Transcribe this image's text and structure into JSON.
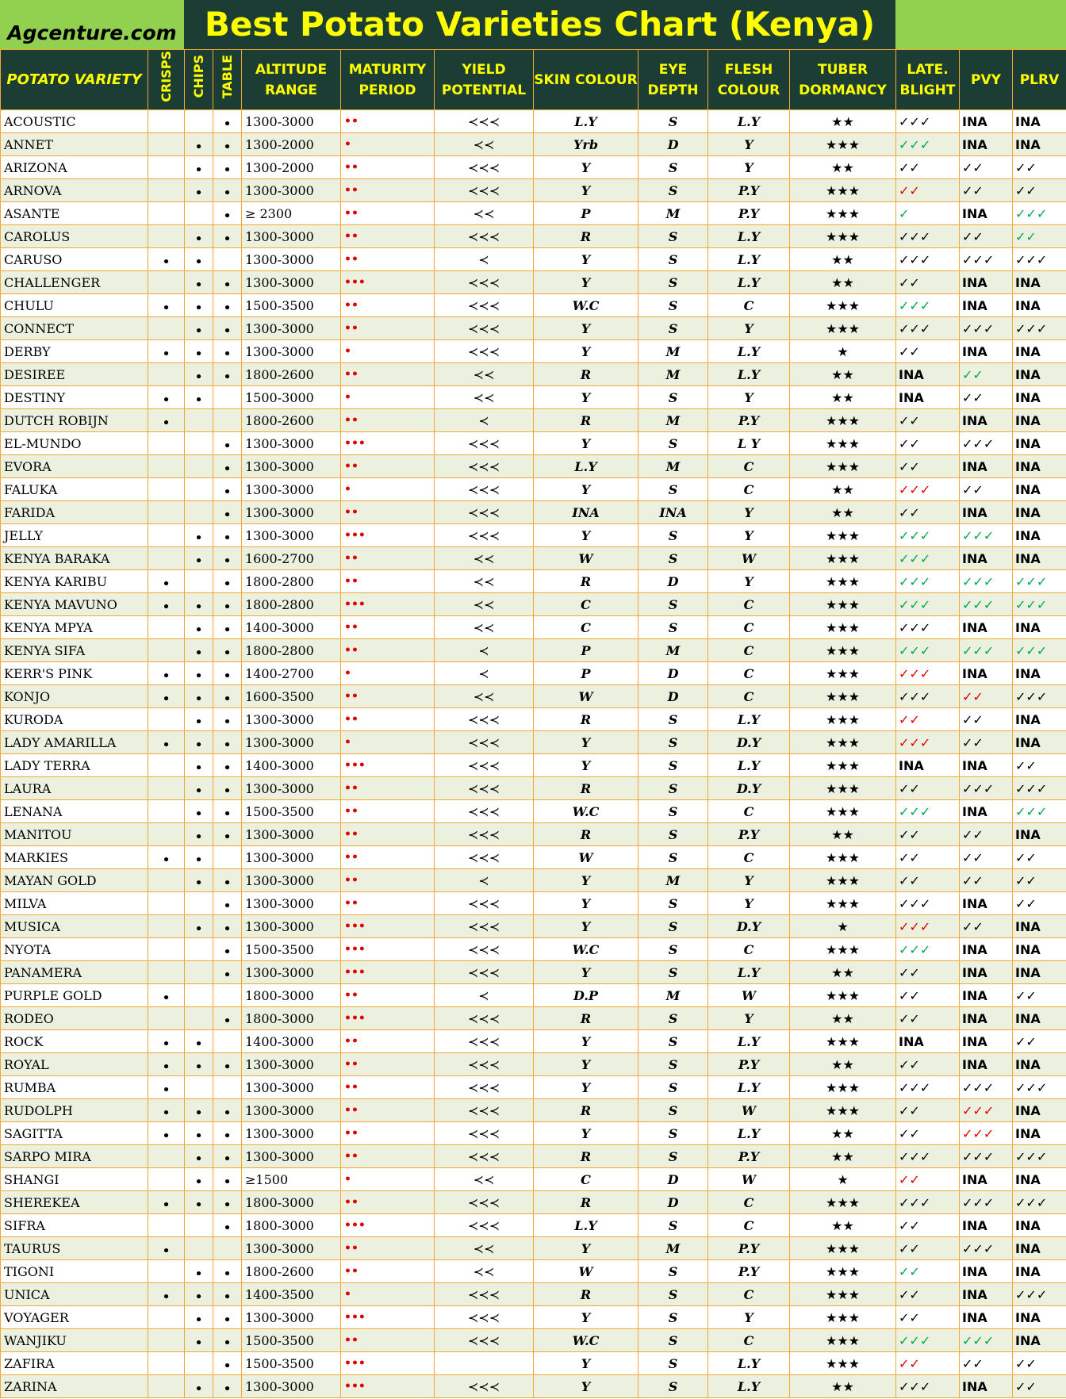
{
  "header": {
    "site": "Agcenture.com",
    "title": "Best Potato Varieties Chart (Kenya)"
  },
  "table": {
    "columns": [
      "POTATO VARIETY",
      "CRISPS",
      "CHIPS",
      "TABLE",
      "ALTITUDE RANGE",
      "MATURITY PERIOD",
      "YIELD POTENTIAL",
      "SKIN COLOUR",
      "EYE DEPTH",
      "FLESH COLOUR",
      "TUBER DORMANCY",
      "LATE. BLIGHT",
      "PVY",
      "PLRV"
    ],
    "rows": [
      [
        "ACOUSTIC",
        null,
        null,
        "•",
        "1300-3000",
        "••",
        "≺≺≺",
        "L.Y",
        "S",
        "L.Y",
        "★★",
        "✓✓✓",
        "INA",
        "INA"
      ],
      [
        "ANNET",
        null,
        "•",
        "•",
        "1300-2000",
        "•",
        "≺≺",
        "Yrb",
        "D",
        "Y",
        "★★★",
        {
          "text": "✓✓✓",
          "color": "green"
        },
        "INA",
        "INA"
      ],
      [
        "ARIZONA",
        null,
        "•",
        "•",
        "1300-2000",
        "••",
        "≺≺≺",
        "Y",
        "S",
        "Y",
        "★★",
        "✓✓",
        "✓✓",
        "✓✓"
      ],
      [
        "ARNOVA",
        null,
        "•",
        "•",
        "1300-3000",
        "••",
        "≺≺≺",
        "Y",
        "S",
        "P.Y",
        "★★★",
        {
          "text": "✓✓",
          "color": "red"
        },
        "✓✓",
        "✓✓"
      ],
      [
        "ASANTE",
        null,
        null,
        "•",
        "≥ 2300",
        "••",
        "≺≺",
        "P",
        "M",
        "P.Y",
        "★★★",
        {
          "text": "✓",
          "color": "green"
        },
        "INA",
        {
          "text": "✓✓✓",
          "color": "green"
        }
      ],
      [
        "CAROLUS",
        null,
        "•",
        "•",
        "1300-3000",
        "••",
        "≺≺≺",
        "R",
        "S",
        "L.Y",
        "★★★",
        "✓✓✓",
        "✓✓",
        {
          "text": "✓✓",
          "color": "green"
        }
      ],
      [
        "CARUSO",
        "•",
        "•",
        null,
        "1300-3000",
        "••",
        "≺",
        "Y",
        "S",
        "L.Y",
        "★★",
        "✓✓✓",
        "✓✓✓",
        "✓✓✓"
      ],
      [
        "CHALLENGER",
        null,
        "•",
        "•",
        "1300-3000",
        "•••",
        "≺≺≺",
        "Y",
        "S",
        "L.Y",
        "★★",
        "✓✓",
        "INA",
        "INA"
      ],
      [
        "CHULU",
        "•",
        "•",
        "•",
        "1500-3500",
        "••",
        "≺≺≺",
        "W.C",
        "S",
        "C",
        "★★★",
        {
          "text": "✓✓✓",
          "color": "green"
        },
        "INA",
        "INA"
      ],
      [
        "CONNECT",
        null,
        "•",
        "•",
        "1300-3000",
        "••",
        "≺≺≺",
        "Y",
        "S",
        "Y",
        "★★★",
        "✓✓✓",
        "✓✓✓",
        "✓✓✓"
      ],
      [
        "DERBY",
        "•",
        "•",
        "•",
        "1300-3000",
        "•",
        "≺≺≺",
        "Y",
        "M",
        "L.Y",
        "★",
        "✓✓",
        "INA",
        "INA"
      ],
      [
        "DESIREE",
        null,
        "•",
        "•",
        "1800-2600",
        "••",
        "≺≺",
        "R",
        "M",
        "L.Y",
        "★★",
        "INA",
        {
          "text": "✓✓",
          "color": "green"
        },
        "INA"
      ],
      [
        "DESTINY",
        "•",
        "•",
        null,
        "1500-3000",
        "•",
        "≺≺",
        "Y",
        "S",
        "Y",
        "★★",
        "INA",
        "✓✓",
        "INA"
      ],
      [
        "DUTCH ROBIJN",
        "•",
        null,
        null,
        "1800-2600",
        "••",
        "≺",
        "R",
        "M",
        "P.Y",
        "★★★",
        "✓✓",
        "INA",
        "INA"
      ],
      [
        "EL-MUNDO",
        null,
        null,
        "•",
        "1300-3000",
        "•••",
        "≺≺≺",
        "Y",
        "S",
        "L Y",
        "★★★",
        "✓✓",
        "✓✓✓",
        "INA"
      ],
      [
        "EVORA",
        null,
        null,
        "•",
        "1300-3000",
        "••",
        "≺≺≺",
        "L.Y",
        "M",
        "C",
        "★★★",
        "✓✓",
        "INA",
        "INA"
      ],
      [
        "FALUKA",
        null,
        null,
        "•",
        "1300-3000",
        "•",
        "≺≺≺",
        "Y",
        "S",
        "C",
        "★★",
        {
          "text": "✓✓✓",
          "color": "red"
        },
        "✓✓",
        "INA"
      ],
      [
        "FARIDA",
        null,
        null,
        "•",
        "1300-3000",
        "••",
        "≺≺≺",
        "INA",
        "INA",
        "Y",
        "★★",
        "✓✓",
        "INA",
        "INA"
      ],
      [
        "JELLY",
        null,
        "•",
        "•",
        "1300-3000",
        "•••",
        "≺≺≺",
        "Y",
        "S",
        "Y",
        "★★★",
        {
          "text": "✓✓✓",
          "color": "green"
        },
        {
          "text": "✓✓✓",
          "color": "green"
        },
        "INA"
      ],
      [
        "KENYA BARAKA",
        null,
        "•",
        "•",
        "1600-2700",
        "••",
        "≺≺",
        "W",
        "S",
        "W",
        "★★★",
        {
          "text": "✓✓✓",
          "color": "green"
        },
        "INA",
        "INA"
      ],
      [
        "KENYA KARIBU",
        "•",
        null,
        "•",
        "1800-2800",
        "••",
        "≺≺",
        "R",
        "D",
        "Y",
        "★★★",
        {
          "text": "✓✓✓",
          "color": "green"
        },
        {
          "text": "✓✓✓",
          "color": "green"
        },
        {
          "text": "✓✓✓",
          "color": "green"
        }
      ],
      [
        "KENYA MAVUNO",
        "•",
        "•",
        "•",
        "1800-2800",
        "•••",
        "≺≺",
        "C",
        "S",
        "C",
        "★★★",
        {
          "text": "✓✓✓",
          "color": "green"
        },
        {
          "text": "✓✓✓",
          "color": "green"
        },
        {
          "text": "✓✓✓",
          "color": "green"
        }
      ],
      [
        "KENYA MPYA",
        null,
        "•",
        "•",
        "1400-3000",
        "••",
        "≺≺",
        "C",
        "S",
        "C",
        "★★★",
        "✓✓✓",
        "INA",
        "INA"
      ],
      [
        "KENYA SIFA",
        null,
        "•",
        "•",
        "1800-2800",
        "••",
        "≺",
        "P",
        "M",
        "C",
        "★★★",
        {
          "text": "✓✓✓",
          "color": "green"
        },
        {
          "text": "✓✓✓",
          "color": "green"
        },
        {
          "text": "✓✓✓",
          "color": "green"
        }
      ],
      [
        "KERR'S PINK",
        "•",
        "•",
        "•",
        "1400-2700",
        "•",
        "≺",
        "P",
        "D",
        "C",
        "★★★",
        {
          "text": "✓✓✓",
          "color": "red"
        },
        "INA",
        "INA"
      ],
      [
        "KONJO",
        "•",
        "•",
        "•",
        "1600-3500",
        "••",
        "≺≺",
        "W",
        "D",
        "C",
        "★★★",
        "✓✓✓",
        {
          "text": "✓✓",
          "color": "red"
        },
        "✓✓✓"
      ],
      [
        "KURODA",
        null,
        "•",
        "•",
        "1300-3000",
        "••",
        "≺≺≺",
        "R",
        "S",
        "L.Y",
        "★★★",
        {
          "text": "✓✓",
          "color": "red"
        },
        "✓✓",
        "INA"
      ],
      [
        "LADY AMARILLA",
        "•",
        "•",
        "•",
        "1300-3000",
        "•",
        "≺≺≺",
        "Y",
        "S",
        "D.Y",
        "★★★",
        {
          "text": "✓✓✓",
          "color": "red"
        },
        "✓✓",
        "INA"
      ],
      [
        "LADY TERRA",
        null,
        "•",
        "•",
        "1400-3000",
        "•••",
        "≺≺≺",
        "Y",
        "S",
        "L.Y",
        "★★★",
        "INA",
        "INA",
        "✓✓"
      ],
      [
        "LAURA",
        null,
        "•",
        "•",
        "1300-3000",
        "••",
        "≺≺≺",
        "R",
        "S",
        "D.Y",
        "★★★",
        "✓✓",
        "✓✓✓",
        "✓✓✓"
      ],
      [
        "LENANA",
        null,
        "•",
        "•",
        "1500-3500",
        "••",
        "≺≺≺",
        "W.C",
        "S",
        "C",
        "★★★",
        {
          "text": "✓✓✓",
          "color": "green"
        },
        "INA",
        {
          "text": "✓✓✓",
          "color": "green"
        }
      ],
      [
        "MANITOU",
        null,
        "•",
        "•",
        "1300-3000",
        "••",
        "≺≺≺",
        "R",
        "S",
        "P.Y",
        "★★",
        "✓✓",
        "✓✓",
        "INA"
      ],
      [
        "MARKIES",
        "•",
        "•",
        null,
        "1300-3000",
        "••",
        "≺≺≺",
        "W",
        "S",
        "C",
        "★★★",
        "✓✓",
        "✓✓",
        "✓✓"
      ],
      [
        "MAYAN GOLD",
        null,
        "•",
        "•",
        "1300-3000",
        "••",
        "≺",
        "Y",
        "M",
        "Y",
        "★★★",
        "✓✓",
        "✓✓",
        "✓✓"
      ],
      [
        "MILVA",
        null,
        null,
        "•",
        "1300-3000",
        "••",
        "≺≺≺",
        "Y",
        "S",
        "Y",
        "★★★",
        "✓✓✓",
        "INA",
        "✓✓"
      ],
      [
        "MUSICA",
        null,
        "•",
        "•",
        "1300-3000",
        "•••",
        "≺≺≺",
        "Y",
        "S",
        "D.Y",
        "★",
        {
          "text": "✓✓✓",
          "color": "red"
        },
        "✓✓",
        "INA"
      ],
      [
        "NYOTA",
        null,
        null,
        "•",
        "1500-3500",
        "•••",
        "≺≺≺",
        "W.C",
        "S",
        "C",
        "★★★",
        {
          "text": "✓✓✓",
          "color": "green"
        },
        "INA",
        "INA"
      ],
      [
        "PANAMERA",
        null,
        null,
        "•",
        "1300-3000",
        "•••",
        "≺≺≺",
        "Y",
        "S",
        "L.Y",
        "★★",
        "✓✓",
        "INA",
        "INA"
      ],
      [
        "PURPLE GOLD",
        "•",
        null,
        null,
        "1800-3000",
        "••",
        "≺",
        "D.P",
        "M",
        "W",
        "★★★",
        "✓✓",
        "INA",
        "✓✓"
      ],
      [
        "RODEO",
        null,
        null,
        "•",
        "1800-3000",
        "•••",
        "≺≺≺",
        "R",
        "S",
        "Y",
        "★★",
        "✓✓",
        "INA",
        "INA"
      ],
      [
        "ROCK",
        "•",
        "•",
        null,
        "1400-3000",
        "••",
        "≺≺≺",
        "Y",
        "S",
        "L.Y",
        "★★★",
        "INA",
        "INA",
        "✓✓"
      ],
      [
        "ROYAL",
        "•",
        "•",
        "•",
        "1300-3000",
        "••",
        "≺≺≺",
        "Y",
        "S",
        "P.Y",
        "★★",
        "✓✓",
        "INA",
        "INA"
      ],
      [
        "RUMBA",
        "•",
        null,
        null,
        "1300-3000",
        "••",
        "≺≺≺",
        "Y",
        "S",
        "L.Y",
        "★★★",
        "✓✓✓",
        "✓✓✓",
        "✓✓✓"
      ],
      [
        "RUDOLPH",
        "•",
        "•",
        "•",
        "1300-3000",
        "••",
        "≺≺≺",
        "R",
        "S",
        "W",
        "★★★",
        "✓✓",
        {
          "text": "✓✓✓",
          "color": "red"
        },
        "INA"
      ],
      [
        "SAGITTA",
        "•",
        "•",
        "•",
        "1300-3000",
        "••",
        "≺≺≺",
        "Y",
        "S",
        "L.Y",
        "★★",
        "✓✓",
        {
          "text": "✓✓✓",
          "color": "red"
        },
        "INA"
      ],
      [
        "SARPO MIRA",
        null,
        "•",
        "•",
        "1300-3000",
        "••",
        "≺≺≺",
        "R",
        "S",
        "P.Y",
        "★★",
        "✓✓✓",
        "✓✓✓",
        "✓✓✓"
      ],
      [
        "SHANGI",
        null,
        "•",
        "•",
        "≥1500",
        "•",
        "≺≺",
        "C",
        "D",
        "W",
        "★",
        {
          "text": "✓✓",
          "color": "red"
        },
        "INA",
        "INA"
      ],
      [
        "SHEREKEA",
        "•",
        "•",
        "•",
        "1800-3000",
        "••",
        "≺≺≺",
        "R",
        "D",
        "C",
        "★★★",
        "✓✓✓",
        "✓✓✓",
        "✓✓✓"
      ],
      [
        "SIFRA",
        null,
        null,
        "•",
        "1800-3000",
        "•••",
        "≺≺≺",
        "L.Y",
        "S",
        "C",
        "★★",
        "✓✓",
        "INA",
        "INA"
      ],
      [
        "TAURUS",
        "•",
        null,
        null,
        "1300-3000",
        "••",
        "≺≺",
        "Y",
        "M",
        "P.Y",
        "★★★",
        "✓✓",
        "✓✓✓",
        "INA"
      ],
      [
        "TIGONI",
        null,
        "•",
        "•",
        "1800-2600",
        "••",
        "≺≺",
        "W",
        "S",
        "P.Y",
        "★★★",
        {
          "text": "✓✓",
          "color": "green"
        },
        "INA",
        "INA"
      ],
      [
        "UNICA",
        "•",
        "•",
        "•",
        "1400-3500",
        "•",
        "≺≺≺",
        "R",
        "S",
        "C",
        "★★★",
        "✓✓",
        "INA",
        "✓✓✓"
      ],
      [
        "VOYAGER",
        null,
        "•",
        "•",
        "1300-3000",
        "•••",
        "≺≺≺",
        "Y",
        "S",
        "Y",
        "★★★",
        "✓✓",
        "INA",
        "INA"
      ],
      [
        "WANJIKU",
        null,
        "•",
        "•",
        "1500-3500",
        "••",
        "≺≺≺",
        "W.C",
        "S",
        "C",
        "★★★",
        {
          "text": "✓✓✓",
          "color": "green"
        },
        {
          "text": "✓✓✓",
          "color": "green"
        },
        "INA"
      ],
      [
        "ZAFIRA",
        null,
        null,
        "•",
        "1500-3500",
        "•••",
        null,
        "Y",
        "S",
        "L.Y",
        "★★★",
        {
          "text": "✓✓",
          "color": "red"
        },
        "✓✓",
        "✓✓"
      ],
      [
        "ZARINA",
        null,
        "•",
        "•",
        "1300-3000",
        "•••",
        "≺≺≺",
        "Y",
        "S",
        "L.Y",
        "★★",
        "✓✓✓",
        "INA",
        "✓✓"
      ]
    ]
  }
}
